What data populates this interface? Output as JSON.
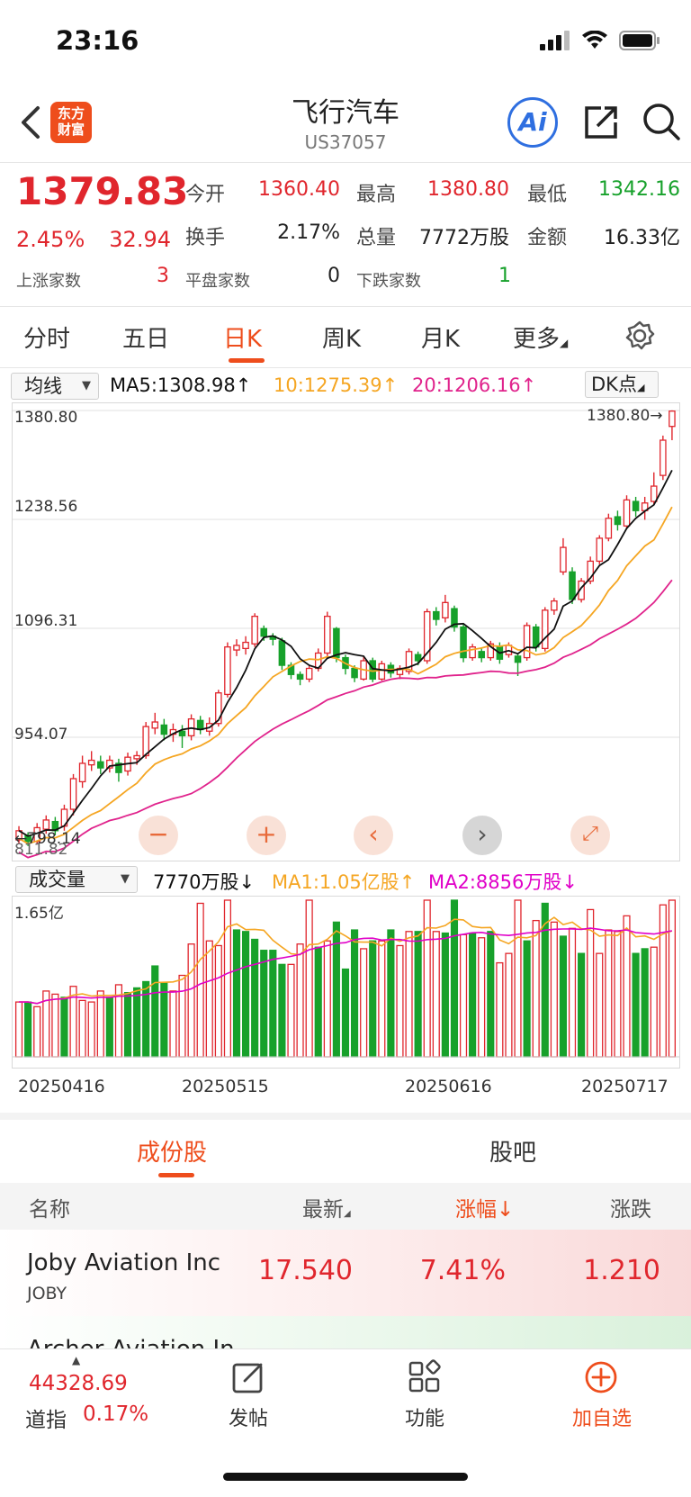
{
  "status": {
    "time": "23:16"
  },
  "header": {
    "logo_line1": "东方",
    "logo_line2": "财富",
    "title": "飞行汽车",
    "code": "US37057",
    "ai_label": "Ai"
  },
  "quote": {
    "price": "1379.83",
    "pct": "2.45%",
    "change": "32.94",
    "open_label": "今开",
    "open": "1360.40",
    "high_label": "最高",
    "high": "1380.80",
    "low_label": "最低",
    "low": "1342.16",
    "turnover_label": "换手",
    "turnover": "2.17%",
    "volume_label": "总量",
    "volume": "7772万股",
    "amount_label": "金额",
    "amount": "16.33亿",
    "up_label": "上涨家数",
    "up": "3",
    "flat_label": "平盘家数",
    "flat": "0",
    "down_label": "下跌家数",
    "down": "1"
  },
  "tabs": [
    "分时",
    "五日",
    "日K",
    "周K",
    "月K",
    "更多"
  ],
  "active_tab": "日K",
  "ma_row": {
    "select": "均线",
    "ma5": "MA5:1308.98",
    "ma10": "10:1275.39",
    "ma20": "20:1206.16",
    "dk": "DK点"
  },
  "chart_labels": {
    "y1": "1380.80",
    "y2": "1238.56",
    "y3": "1096.31",
    "y4": "954.07",
    "y5": "811.82",
    "high_marker": "1380.80→",
    "low_marker": "←798.14"
  },
  "vol_row": {
    "select": "成交量",
    "vol": "7770万股",
    "ma1": "MA1:1.05亿股",
    "ma2": "MA2:8856万股",
    "ymax": "1.65亿"
  },
  "dates": [
    "20250416",
    "20250515",
    "20250616",
    "20250717"
  ],
  "section_tabs": [
    "成份股",
    "股吧"
  ],
  "table": {
    "headers": [
      "名称",
      "最新",
      "涨幅",
      "涨跌"
    ],
    "rows": [
      {
        "name": "Joby Aviation Inc",
        "code": "JOBY",
        "last": "17.540",
        "pct": "7.41%",
        "chg": "1.210"
      },
      {
        "name": "Archer Aviation In",
        "code": "",
        "last": "",
        "pct": "",
        "chg": ""
      }
    ]
  },
  "bottom": {
    "index_value": "44328.69",
    "index_name": "道指",
    "index_pct": "0.17%",
    "post": "发帖",
    "func": "功能",
    "add": "加自选"
  },
  "colors": {
    "up": "#e0262d",
    "down": "#17a12b",
    "accent": "#ee4d1c",
    "ma5": "#111111",
    "ma10": "#f5a623",
    "ma20": "#e0238c"
  },
  "chart_data": {
    "type": "candlestick",
    "ylim": [
      811.82,
      1380.8
    ],
    "candles": [
      [
        820,
        832,
        815,
        838
      ],
      [
        826,
        818,
        812,
        830
      ],
      [
        818,
        836,
        814,
        842
      ],
      [
        834,
        846,
        828,
        852
      ],
      [
        844,
        832,
        826,
        850
      ],
      [
        838,
        860,
        832,
        866
      ],
      [
        860,
        900,
        852,
        906
      ],
      [
        896,
        920,
        888,
        930
      ],
      [
        918,
        924,
        910,
        936
      ],
      [
        922,
        914,
        906,
        930
      ],
      [
        914,
        924,
        908,
        930
      ],
      [
        920,
        908,
        896,
        926
      ],
      [
        910,
        928,
        904,
        934
      ],
      [
        926,
        930,
        918,
        936
      ],
      [
        930,
        968,
        926,
        974
      ],
      [
        966,
        974,
        958,
        986
      ],
      [
        970,
        958,
        950,
        978
      ],
      [
        958,
        964,
        948,
        972
      ],
      [
        962,
        956,
        940,
        970
      ],
      [
        956,
        978,
        950,
        984
      ],
      [
        976,
        964,
        958,
        982
      ],
      [
        962,
        972,
        956,
        980
      ],
      [
        972,
        1012,
        968,
        1016
      ],
      [
        1010,
        1072,
        1006,
        1078
      ],
      [
        1068,
        1074,
        1060,
        1082
      ],
      [
        1070,
        1078,
        1062,
        1086
      ],
      [
        1076,
        1112,
        1072,
        1116
      ],
      [
        1096,
        1086,
        1080,
        1100
      ],
      [
        1086,
        1082,
        1074,
        1090
      ],
      [
        1080,
        1048,
        1042,
        1084
      ],
      [
        1048,
        1036,
        1030,
        1052
      ],
      [
        1036,
        1030,
        1022,
        1040
      ],
      [
        1030,
        1044,
        1026,
        1048
      ],
      [
        1044,
        1064,
        1040,
        1070
      ],
      [
        1064,
        1112,
        1060,
        1118
      ],
      [
        1096,
        1058,
        1052,
        1098
      ],
      [
        1058,
        1044,
        1036,
        1062
      ],
      [
        1044,
        1032,
        1026,
        1048
      ],
      [
        1030,
        1054,
        1028,
        1060
      ],
      [
        1054,
        1030,
        1026,
        1058
      ],
      [
        1030,
        1050,
        1028,
        1054
      ],
      [
        1048,
        1038,
        1032,
        1052
      ],
      [
        1036,
        1044,
        1030,
        1048
      ],
      [
        1040,
        1066,
        1036,
        1070
      ],
      [
        1062,
        1054,
        1048,
        1066
      ],
      [
        1054,
        1118,
        1050,
        1122
      ],
      [
        1118,
        1108,
        1100,
        1124
      ],
      [
        1110,
        1130,
        1104,
        1140
      ],
      [
        1122,
        1098,
        1092,
        1126
      ],
      [
        1098,
        1058,
        1052,
        1102
      ],
      [
        1058,
        1072,
        1054,
        1076
      ],
      [
        1066,
        1058,
        1052,
        1070
      ],
      [
        1058,
        1076,
        1054,
        1080
      ],
      [
        1072,
        1056,
        1050,
        1078
      ],
      [
        1062,
        1074,
        1058,
        1078
      ],
      [
        1060,
        1052,
        1034,
        1064
      ],
      [
        1058,
        1100,
        1054,
        1104
      ],
      [
        1098,
        1072,
        1066,
        1102
      ],
      [
        1070,
        1120,
        1066,
        1124
      ],
      [
        1120,
        1132,
        1114,
        1136
      ],
      [
        1170,
        1202,
        1166,
        1214
      ],
      [
        1170,
        1134,
        1128,
        1176
      ],
      [
        1134,
        1158,
        1130,
        1162
      ],
      [
        1158,
        1184,
        1154,
        1190
      ],
      [
        1184,
        1214,
        1180,
        1218
      ],
      [
        1214,
        1240,
        1210,
        1246
      ],
      [
        1242,
        1232,
        1224,
        1250
      ],
      [
        1230,
        1264,
        1226,
        1270
      ],
      [
        1262,
        1250,
        1242,
        1268
      ],
      [
        1250,
        1260,
        1238,
        1268
      ],
      [
        1262,
        1282,
        1258,
        1300
      ],
      [
        1296,
        1342,
        1290,
        1348
      ],
      [
        1360,
        1380,
        1342,
        1381
      ]
    ],
    "volumes": [
      [
        0.35,
        1
      ],
      [
        0.35,
        0
      ],
      [
        0.32,
        1
      ],
      [
        0.42,
        1
      ],
      [
        0.4,
        1
      ],
      [
        0.38,
        0
      ],
      [
        0.45,
        1
      ],
      [
        0.36,
        1
      ],
      [
        0.35,
        1
      ],
      [
        0.42,
        1
      ],
      [
        0.38,
        0
      ],
      [
        0.46,
        1
      ],
      [
        0.41,
        0
      ],
      [
        0.44,
        0
      ],
      [
        0.48,
        0
      ],
      [
        0.58,
        0
      ],
      [
        0.47,
        0
      ],
      [
        0.42,
        1
      ],
      [
        0.52,
        1
      ],
      [
        0.72,
        1
      ],
      [
        0.98,
        1
      ],
      [
        0.74,
        1
      ],
      [
        0.71,
        1
      ],
      [
        1.0,
        1
      ],
      [
        0.81,
        0
      ],
      [
        0.8,
        0
      ],
      [
        0.75,
        0
      ],
      [
        0.68,
        0
      ],
      [
        0.68,
        0
      ],
      [
        0.59,
        0
      ],
      [
        0.59,
        1
      ],
      [
        0.72,
        1
      ],
      [
        1.0,
        1
      ],
      [
        0.7,
        0
      ],
      [
        0.74,
        1
      ],
      [
        0.86,
        0
      ],
      [
        0.56,
        0
      ],
      [
        0.81,
        0
      ],
      [
        0.69,
        1
      ],
      [
        0.74,
        0
      ],
      [
        0.74,
        1
      ],
      [
        0.81,
        0
      ],
      [
        0.71,
        1
      ],
      [
        0.8,
        1
      ],
      [
        0.8,
        0
      ],
      [
        1.0,
        1
      ],
      [
        0.8,
        1
      ],
      [
        0.79,
        0
      ],
      [
        1.0,
        0
      ],
      [
        0.78,
        1
      ],
      [
        0.79,
        0
      ],
      [
        0.76,
        1
      ],
      [
        0.8,
        0
      ],
      [
        0.6,
        1
      ],
      [
        0.66,
        1
      ],
      [
        1.0,
        1
      ],
      [
        0.74,
        0
      ],
      [
        0.87,
        1
      ],
      [
        0.98,
        0
      ],
      [
        0.86,
        1
      ],
      [
        0.77,
        0
      ],
      [
        0.82,
        1
      ],
      [
        0.66,
        0
      ],
      [
        0.94,
        1
      ],
      [
        0.66,
        1
      ],
      [
        0.81,
        1
      ],
      [
        0.8,
        1
      ],
      [
        0.9,
        1
      ],
      [
        0.66,
        0
      ],
      [
        0.69,
        0
      ],
      [
        0.7,
        1
      ],
      [
        0.97,
        1
      ],
      [
        1.0,
        1
      ]
    ]
  }
}
